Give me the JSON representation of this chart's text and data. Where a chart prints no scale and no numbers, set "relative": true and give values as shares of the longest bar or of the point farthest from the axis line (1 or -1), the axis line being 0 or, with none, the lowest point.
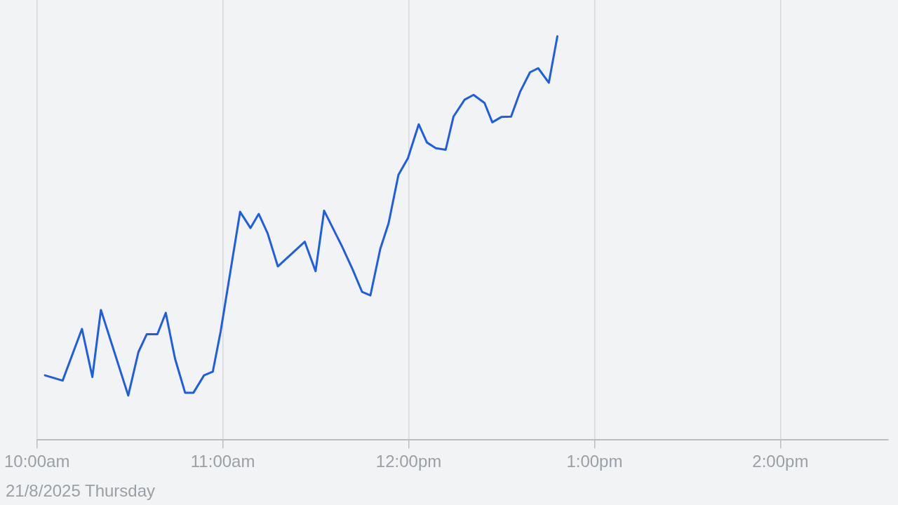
{
  "chart_data": {
    "type": "line",
    "relative": true,
    "x": [
      10.043,
      10.138,
      10.242,
      10.298,
      10.344,
      10.491,
      10.546,
      10.591,
      10.648,
      10.693,
      10.743,
      10.797,
      10.842,
      10.899,
      10.946,
      10.988,
      11.093,
      11.149,
      11.193,
      11.241,
      11.296,
      11.441,
      11.499,
      11.545,
      11.642,
      11.698,
      11.749,
      11.794,
      11.847,
      11.892,
      11.945,
      11.996,
      12.054,
      12.098,
      12.146,
      12.199,
      12.241,
      12.301,
      12.349,
      12.408,
      12.45,
      12.498,
      12.551,
      12.599,
      12.653,
      12.697,
      12.754,
      12.8
    ],
    "values": [
      0.16,
      0.147,
      0.275,
      0.156,
      0.322,
      0.11,
      0.218,
      0.262,
      0.262,
      0.315,
      0.201,
      0.117,
      0.117,
      0.16,
      0.169,
      0.268,
      0.565,
      0.525,
      0.56,
      0.512,
      0.43,
      0.491,
      0.418,
      0.568,
      0.479,
      0.423,
      0.367,
      0.358,
      0.473,
      0.537,
      0.657,
      0.698,
      0.782,
      0.737,
      0.723,
      0.719,
      0.801,
      0.843,
      0.855,
      0.835,
      0.787,
      0.8,
      0.801,
      0.862,
      0.911,
      0.921,
      0.885,
      1.0
    ],
    "color": "#1d5fe0",
    "line_style": "solid",
    "xlim": [
      10,
      14.58
    ],
    "xticks": [
      {
        "value": 10,
        "label": "10:00am"
      },
      {
        "value": 11,
        "label": "11:00am"
      },
      {
        "value": 12,
        "label": "12:00pm"
      },
      {
        "value": 13,
        "label": "1:00pm"
      },
      {
        "value": 14,
        "label": "2:00pm"
      }
    ],
    "grid": "x",
    "annotations": [
      "21/8/2025 Thursday"
    ]
  }
}
